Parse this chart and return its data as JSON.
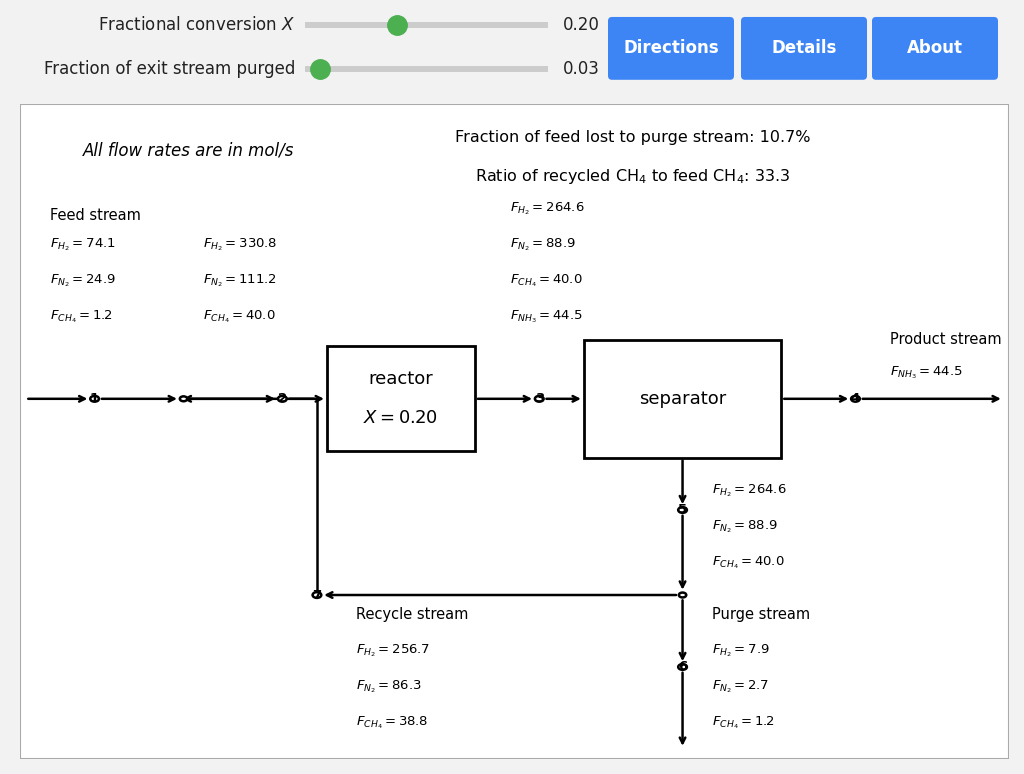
{
  "bg_color": "#f2f2f2",
  "panel_bg": "#ffffff",
  "slider1_label": "Fractional conversion $X$",
  "slider1_value": "0.20",
  "slider2_label": "Fraction of exit stream purged",
  "slider2_value": "0.03",
  "slider1_thumb": 0.38,
  "slider2_thumb": 0.06,
  "btn_labels": [
    "Directions",
    "Details",
    "About"
  ],
  "btn_color": "#3d85f5",
  "header_text1": "Fraction of feed lost to purge stream: 10.7%",
  "header_text2": "Ratio of recycled $\\mathrm{CH_4}$ to feed $\\mathrm{CH_4}$: 33.3",
  "all_flow_text": "All flow rates are in mol/s",
  "feed_stream_label": "Feed stream",
  "product_stream_label": "Product stream",
  "recycle_stream_label": "Recycle stream",
  "purge_stream_label": "Purge stream",
  "reactor_label1": "reactor",
  "reactor_label2": "$X = 0.20$",
  "separator_label": "separator",
  "feed_flows": [
    "$F_{H_2} = 74.1$",
    "$F_{N_2} = 24.9$",
    "$F_{CH_4} = 1.2$"
  ],
  "stream2_flows": [
    "$F_{H_2} = 330.8$",
    "$F_{N_2} = 111.2$",
    "$F_{CH_4} = 40.0$"
  ],
  "stream3_flows": [
    "$F_{H_2} = 264.6$",
    "$F_{N_2} = 88.9$",
    "$F_{CH_4} = 40.0$",
    "$F_{NH_3} = 44.5$"
  ],
  "stream4_flows": [
    "$F_{NH_3} = 44.5$"
  ],
  "stream5_flows": [
    "$F_{H_2} = 264.6$",
    "$F_{N_2} = 88.9$",
    "$F_{CH_4} = 40.0$"
  ],
  "stream6_flows": [
    "$F_{H_2} = 7.9$",
    "$F_{N_2} = 2.7$",
    "$F_{CH_4} = 1.2$"
  ],
  "stream7_flows": [
    "$F_{H_2} = 256.7$",
    "$F_{N_2} = 86.3$",
    "$F_{CH_4} = 38.8$"
  ],
  "node_r": 0.2,
  "lw": 1.8
}
